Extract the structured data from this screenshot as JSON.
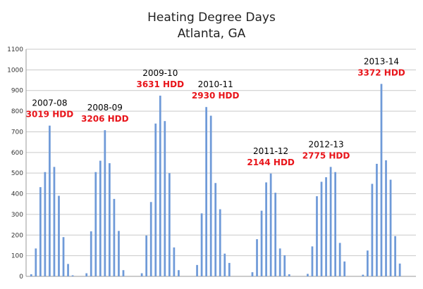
{
  "chart_data": {
    "type": "bar",
    "title": "Heating Degree Days",
    "subtitle": "Atlanta, GA",
    "xlabel": "",
    "ylabel": "",
    "ylim": [
      0,
      1100
    ],
    "yticks": [
      0,
      100,
      200,
      300,
      400,
      500,
      600,
      700,
      800,
      900,
      1000,
      1100
    ],
    "grid": true,
    "bar_color": "#6f9ad8",
    "annotation_color": "#e8141a",
    "seasons": [
      {
        "label": "2007-08",
        "total": "3019 HDD",
        "values": [
          10,
          135,
          432,
          505,
          730,
          530,
          390,
          190,
          60,
          5,
          0,
          0
        ]
      },
      {
        "label": "2008-09",
        "total": "3206 HDD",
        "values": [
          15,
          218,
          505,
          560,
          708,
          548,
          375,
          220,
          30,
          0,
          0,
          0
        ]
      },
      {
        "label": "2009-10",
        "total": "3631 HDD",
        "values": [
          15,
          198,
          360,
          740,
          875,
          752,
          500,
          140,
          30,
          0,
          0,
          0
        ]
      },
      {
        "label": "2010-11",
        "total": "2930 HDD",
        "values": [
          55,
          305,
          820,
          778,
          452,
          325,
          110,
          65,
          0,
          0,
          0,
          0
        ]
      },
      {
        "label": "2011-12",
        "total": "2144 HDD",
        "values": [
          20,
          180,
          318,
          455,
          498,
          405,
          135,
          102,
          10,
          0,
          0,
          0
        ]
      },
      {
        "label": "2012-13",
        "total": "2775 HDD",
        "values": [
          12,
          145,
          388,
          458,
          480,
          530,
          505,
          162,
          72,
          0,
          0,
          0
        ]
      },
      {
        "label": "2013-14",
        "total": "3372 HDD",
        "values": [
          8,
          125,
          448,
          545,
          932,
          562,
          468,
          195,
          62,
          0,
          0,
          0
        ]
      }
    ]
  }
}
